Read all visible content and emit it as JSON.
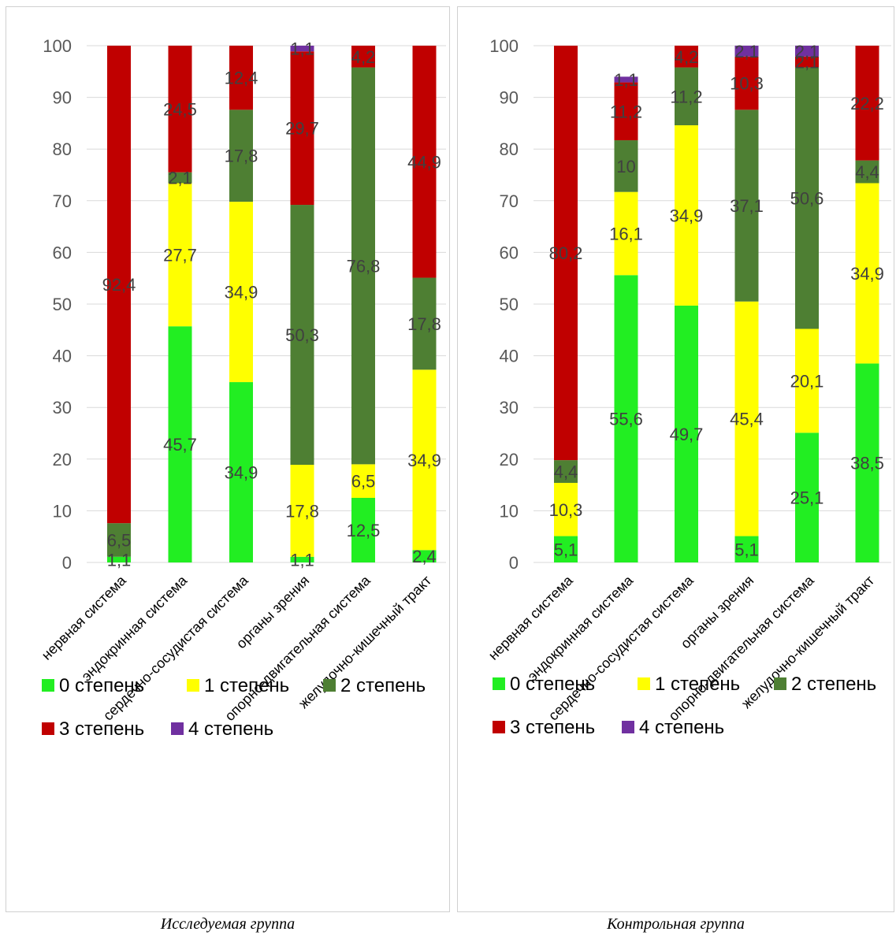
{
  "colors": {
    "grade0": "#22EE22",
    "grade1": "#FFFF00",
    "grade2": "#4E7F33",
    "grade3": "#C00000",
    "grade4": "#7030A0",
    "grid": "#D9D9D9"
  },
  "legend": [
    "0 степень",
    "1 степень",
    "2 степень",
    "3 степень",
    "4 степень"
  ],
  "captions": {
    "left": "Исследуемая группа",
    "right": "Контрольная группа"
  },
  "chart_data": [
    {
      "type": "bar",
      "stacked": true,
      "ylim": [
        0,
        100
      ],
      "yticks": [
        0,
        10,
        20,
        30,
        40,
        50,
        60,
        70,
        80,
        90,
        100
      ],
      "grid": true,
      "legend_position": "bottom",
      "categories": [
        "нервная система",
        "эндокринная система",
        "сердечно-сосудистая система",
        "органы зрения",
        "опорно-двигательная система",
        "желудочно-кишечный тракт"
      ],
      "series": [
        {
          "name": "0 степень",
          "values": [
            1.1,
            45.7,
            34.9,
            1.1,
            12.5,
            2.4
          ]
        },
        {
          "name": "1 степень",
          "values": [
            0,
            27.7,
            34.9,
            17.8,
            6.5,
            34.9
          ]
        },
        {
          "name": "2 степень",
          "values": [
            6.5,
            2.1,
            17.8,
            50.3,
            76.8,
            17.8
          ]
        },
        {
          "name": "3 степень",
          "values": [
            92.4,
            24.5,
            12.4,
            29.7,
            4.2,
            44.9
          ]
        },
        {
          "name": "4 степень",
          "values": [
            0,
            0,
            0,
            1.1,
            0,
            0
          ]
        }
      ],
      "labels": [
        [
          "1,1",
          "45,7",
          "34,9",
          "1,1",
          "12,5",
          "2,4"
        ],
        [
          "",
          "27,7",
          "34,9",
          "17,8",
          "6,5",
          "34,9"
        ],
        [
          "6,5",
          "2,1",
          "17,8",
          "50,3",
          "76,8",
          "17,8"
        ],
        [
          "92,4",
          "24,5",
          "12,4",
          "29,7",
          "4,2",
          "44,9"
        ],
        [
          "",
          "",
          "",
          "1,1",
          "",
          ""
        ]
      ]
    },
    {
      "type": "bar",
      "stacked": true,
      "ylim": [
        0,
        100
      ],
      "yticks": [
        0,
        10,
        20,
        30,
        40,
        50,
        60,
        70,
        80,
        90,
        100
      ],
      "grid": true,
      "legend_position": "bottom",
      "categories": [
        "нервная система",
        "эндокринная система",
        "сердечно-сосудистая система",
        "органы зрения",
        "опорно-двигательная система",
        "желудочно-кишечный тракт"
      ],
      "series": [
        {
          "name": "0 степень",
          "values": [
            5.1,
            55.6,
            49.7,
            5.1,
            25.1,
            38.5
          ]
        },
        {
          "name": "1 степень",
          "values": [
            10.3,
            16.1,
            34.9,
            45.4,
            20.1,
            34.9
          ]
        },
        {
          "name": "2 степень",
          "values": [
            4.4,
            10,
            11.2,
            37.1,
            50.6,
            4.4
          ]
        },
        {
          "name": "3 степень",
          "values": [
            80.2,
            11.2,
            4.2,
            10.3,
            2.1,
            22.2
          ]
        },
        {
          "name": "4 степень",
          "values": [
            0,
            1.1,
            0,
            2.1,
            2.1,
            0
          ]
        }
      ],
      "labels": [
        [
          "5,1",
          "55,6",
          "49,7",
          "5,1",
          "25,1",
          "38,5"
        ],
        [
          "10,3",
          "16,1",
          "34,9",
          "45,4",
          "20,1",
          "34,9"
        ],
        [
          "4,4",
          "10",
          "11,2",
          "37,1",
          "50,6",
          "4,4"
        ],
        [
          "80,2",
          "11,2",
          "4,2",
          "10,3",
          "2,1",
          "22,2"
        ],
        [
          "",
          "1,1",
          "",
          "2,1",
          "2,1",
          ""
        ]
      ]
    }
  ]
}
